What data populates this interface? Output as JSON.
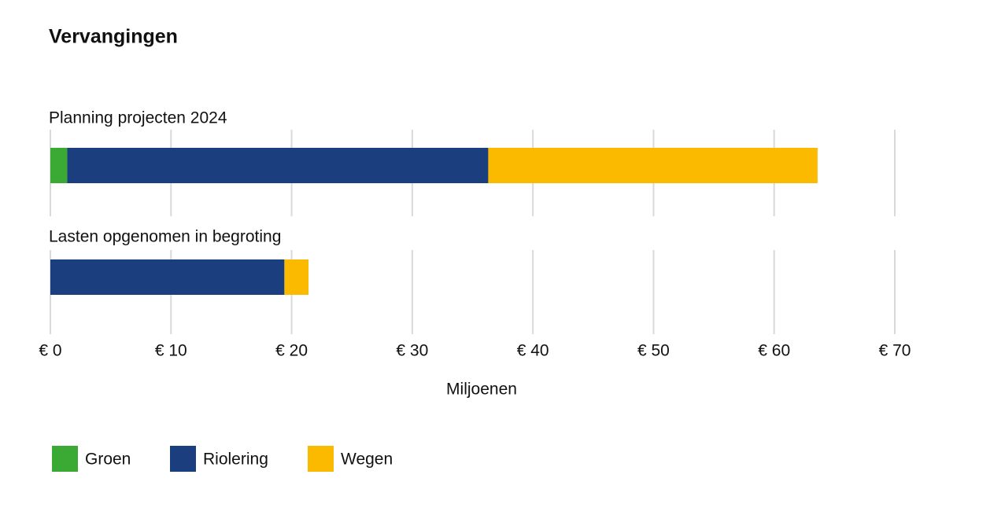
{
  "chart_data": {
    "type": "stacked-barh",
    "title": "Vervangingen",
    "categories": [
      "Planning projecten 2024",
      "Lasten opgenomen in begroting"
    ],
    "series": [
      {
        "name": "Groen",
        "color": "#3aaa35",
        "values": [
          1.4,
          0
        ]
      },
      {
        "name": "Riolering",
        "color": "#1b3f7e",
        "values": [
          34.9,
          19.4
        ]
      },
      {
        "name": "Wegen",
        "color": "#fbb900",
        "values": [
          27.3,
          2.0
        ]
      }
    ],
    "xlim": [
      0,
      70
    ],
    "xticks": [
      {
        "value": 0,
        "label": "€ 0"
      },
      {
        "value": 10,
        "label": "€ 10"
      },
      {
        "value": 20,
        "label": "€ 20"
      },
      {
        "value": 30,
        "label": "€ 30"
      },
      {
        "value": 40,
        "label": "€ 40"
      },
      {
        "value": 50,
        "label": "€ 50"
      },
      {
        "value": 60,
        "label": "€ 60"
      },
      {
        "value": 70,
        "label": "€ 70"
      }
    ],
    "xlabel": "Miljoenen",
    "grid": true
  }
}
